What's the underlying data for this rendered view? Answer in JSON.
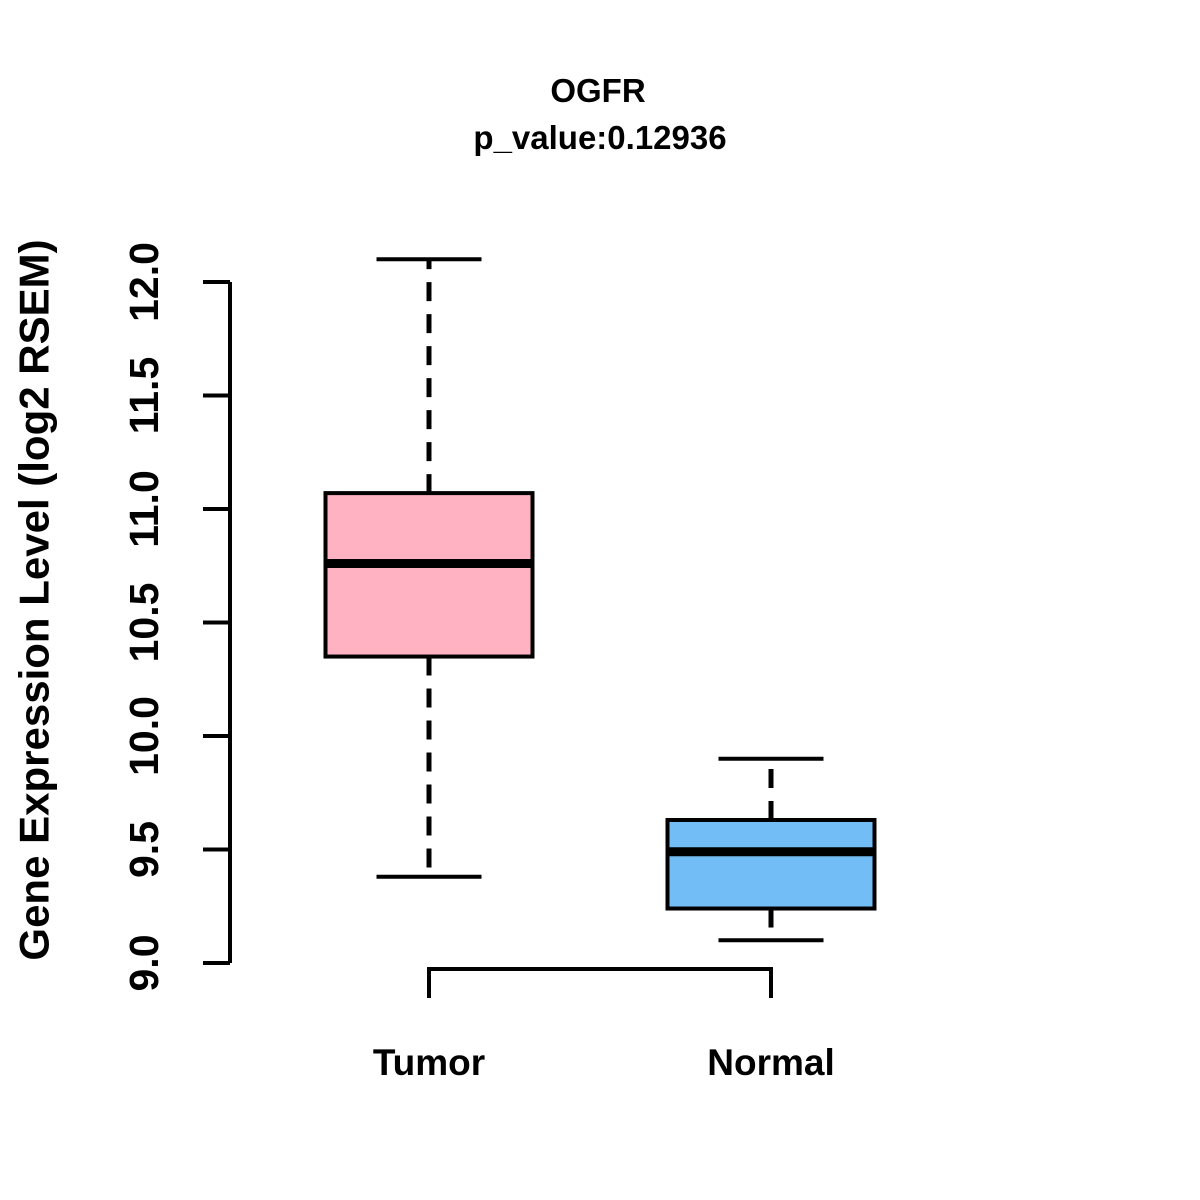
{
  "chart_data": {
    "type": "boxplot",
    "title": "OGFR",
    "subtitle": "p_value:0.12936",
    "ylabel": "Gene Expression Level (log2 RSEM)",
    "xlabel": "",
    "ylim": [
      9.0,
      12.0
    ],
    "yticks": [
      9.0,
      9.5,
      10.0,
      10.5,
      11.0,
      11.5,
      12.0
    ],
    "ytick_labels": [
      "9.0",
      "9.5",
      "10.0",
      "10.5",
      "11.0",
      "11.5",
      "12.0"
    ],
    "categories": [
      "Tumor",
      "Normal"
    ],
    "grid": false,
    "legend": "none",
    "background_color": "#FFFFFF",
    "stroke_color": "#000000",
    "series": [
      {
        "name": "Tumor",
        "fill": "#FFB2C2",
        "whisker_low": 9.38,
        "q1": 10.35,
        "median": 10.76,
        "q3": 11.07,
        "whisker_high": 12.1
      },
      {
        "name": "Normal",
        "fill": "#73BDF6",
        "whisker_low": 9.1,
        "q1": 9.24,
        "median": 9.49,
        "q3": 9.63,
        "whisker_high": 9.9
      }
    ],
    "comparison_bracket": {
      "from": "Tumor",
      "to": "Normal",
      "label": ""
    }
  }
}
